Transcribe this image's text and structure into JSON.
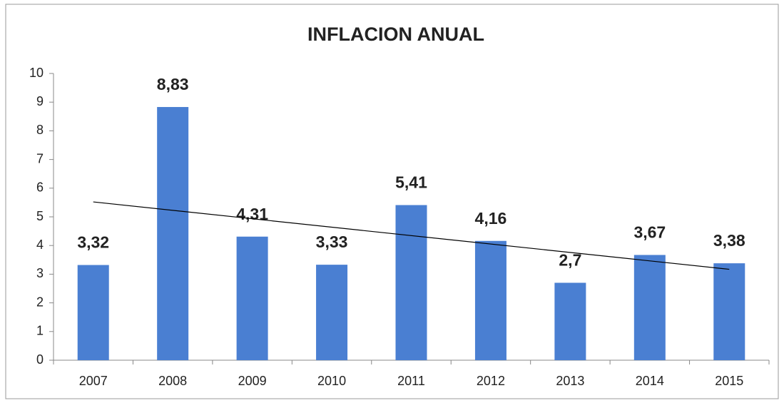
{
  "chart_data": {
    "type": "bar",
    "title": "INFLACION  ANUAL",
    "categories": [
      "2007",
      "2008",
      "2009",
      "2010",
      "2011",
      "2012",
      "2013",
      "2014",
      "2015"
    ],
    "values": [
      3.32,
      8.83,
      4.31,
      3.33,
      5.41,
      4.16,
      2.7,
      3.67,
      3.38
    ],
    "value_labels": [
      "3,32",
      "8,83",
      "4,31",
      "3,33",
      "5,41",
      "4,16",
      "2,7",
      "3,67",
      "3,38"
    ],
    "color": "#4a7fd2",
    "ylim": [
      0,
      10
    ],
    "yticks": [
      0,
      1,
      2,
      3,
      4,
      5,
      6,
      7,
      8,
      9,
      10
    ],
    "grid": false,
    "trendline": "linear"
  }
}
